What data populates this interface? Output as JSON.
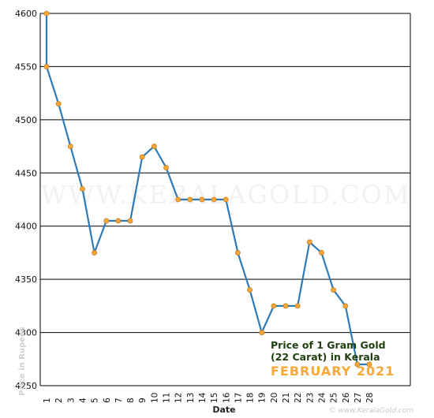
{
  "chart_data": {
    "type": "line",
    "title_line1": "Price of 1 Gram Gold",
    "title_line2": "(22 Carat) in Kerala",
    "title_line3": "FEBRUARY 2021",
    "xlabel": "Date",
    "ylabel": "Price in Rupees",
    "watermark": "WWW.KERALAGOLD.COM",
    "credit": "© www.KeralaGold.com",
    "ylim": [
      4250,
      4600
    ],
    "yticks": [
      4250,
      4300,
      4350,
      4400,
      4450,
      4500,
      4550,
      4600
    ],
    "x_ticks": [
      1,
      2,
      3,
      4,
      5,
      6,
      7,
      8,
      9,
      10,
      11,
      12,
      13,
      14,
      15,
      16,
      17,
      18,
      19,
      20,
      21,
      22,
      23,
      24,
      25,
      26,
      27,
      28
    ],
    "grid": true,
    "series": [
      {
        "points": [
          [
            1,
            4600
          ],
          [
            1,
            4550
          ],
          [
            2,
            4515
          ],
          [
            3,
            4475
          ],
          [
            4,
            4435
          ],
          [
            5,
            4375
          ],
          [
            6,
            4405
          ],
          [
            7,
            4405
          ],
          [
            8,
            4405
          ],
          [
            9,
            4465
          ],
          [
            10,
            4475
          ],
          [
            11,
            4455
          ],
          [
            12,
            4425
          ],
          [
            13,
            4425
          ],
          [
            14,
            4425
          ],
          [
            15,
            4425
          ],
          [
            16,
            4425
          ],
          [
            17,
            4375
          ],
          [
            18,
            4340
          ],
          [
            19,
            4300
          ],
          [
            20,
            4325
          ],
          [
            21,
            4325
          ],
          [
            22,
            4325
          ],
          [
            23,
            4385
          ],
          [
            24,
            4375
          ],
          [
            25,
            4340
          ],
          [
            26,
            4325
          ],
          [
            27,
            4270
          ],
          [
            28,
            4270
          ]
        ]
      }
    ],
    "colors": {
      "line": "#2f7ab5",
      "marker_fill": "#f7a83a",
      "marker_stroke": "#c77a1a",
      "grid": "#000000",
      "title_dark": "#1f3f0f",
      "title_accent": "#f7a83a"
    }
  }
}
